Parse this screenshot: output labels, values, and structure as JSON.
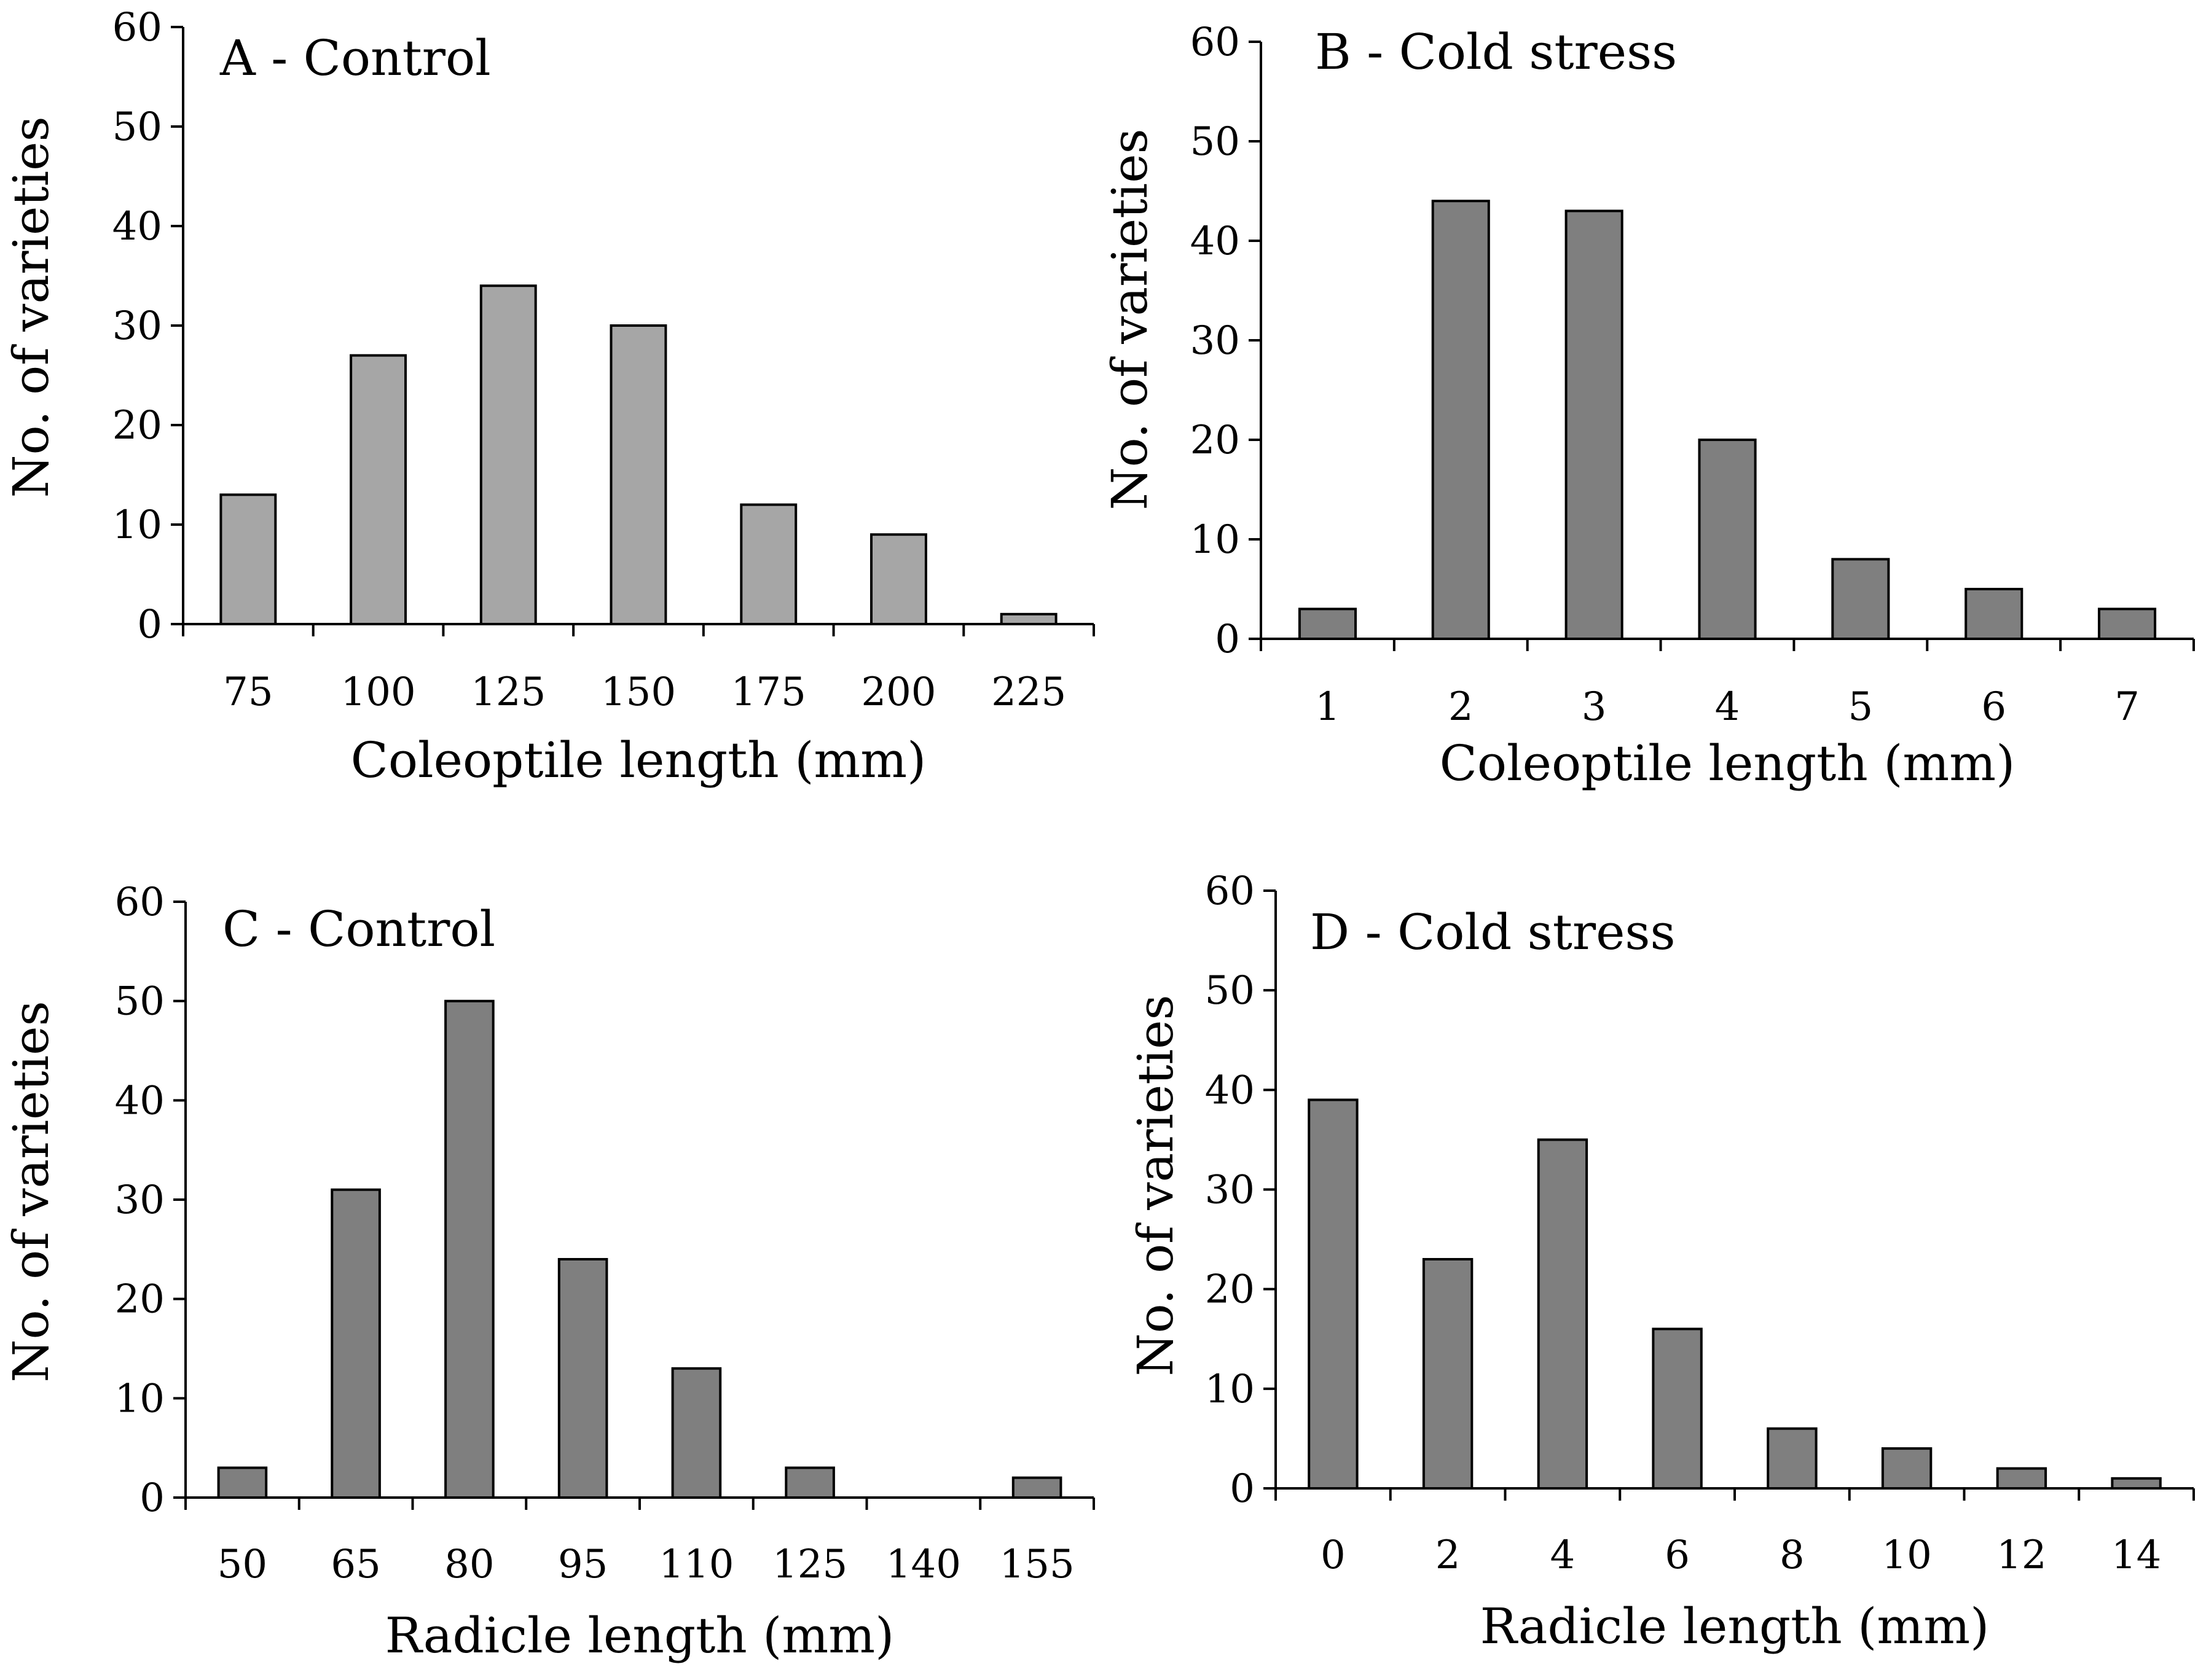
{
  "chart_data": [
    {
      "type": "bar",
      "title": "A - Control",
      "xlabel": "Coleoptile length (mm)",
      "ylabel": "No. of varieties",
      "categories": [
        "75",
        "100",
        "125",
        "150",
        "175",
        "200",
        "225"
      ],
      "values": [
        13,
        27,
        34,
        30,
        12,
        9,
        1
      ],
      "ylim": [
        0,
        60
      ],
      "yticks": [
        "0",
        "10",
        "20",
        "30",
        "40",
        "50",
        "60"
      ],
      "bar_color": "#a6a6a6",
      "grid": false,
      "legend": "none"
    },
    {
      "type": "bar",
      "title": "B - Cold stress",
      "xlabel": "Coleoptile length (mm)",
      "ylabel": "No. of varieties",
      "categories": [
        "1",
        "2",
        "3",
        "4",
        "5",
        "6",
        "7"
      ],
      "values": [
        3,
        44,
        43,
        20,
        8,
        5,
        3
      ],
      "ylim": [
        0,
        60
      ],
      "yticks": [
        "0",
        "10",
        "20",
        "30",
        "40",
        "50",
        "60"
      ],
      "bar_color": "#7f7f7f",
      "grid": false,
      "legend": "none"
    },
    {
      "type": "bar",
      "title": "C - Control",
      "xlabel": "Radicle length (mm)",
      "ylabel": "No. of varieties",
      "categories": [
        "50",
        "65",
        "80",
        "95",
        "110",
        "125",
        "140",
        "155"
      ],
      "values": [
        3,
        31,
        50,
        24,
        13,
        3,
        0,
        2
      ],
      "ylim": [
        0,
        60
      ],
      "yticks": [
        "0",
        "10",
        "20",
        "30",
        "40",
        "50",
        "60"
      ],
      "bar_color": "#7f7f7f",
      "grid": false,
      "legend": "none"
    },
    {
      "type": "bar",
      "title": "D - Cold stress",
      "xlabel": "Radicle length (mm)",
      "ylabel": "No. of varieties",
      "categories": [
        "0",
        "2",
        "4",
        "6",
        "8",
        "10",
        "12",
        "14"
      ],
      "values": [
        39,
        23,
        35,
        16,
        6,
        4,
        2,
        1
      ],
      "ylim": [
        0,
        60
      ],
      "yticks": [
        "0",
        "10",
        "20",
        "30",
        "40",
        "50",
        "60"
      ],
      "bar_color": "#7f7f7f",
      "grid": false,
      "legend": "none"
    }
  ]
}
